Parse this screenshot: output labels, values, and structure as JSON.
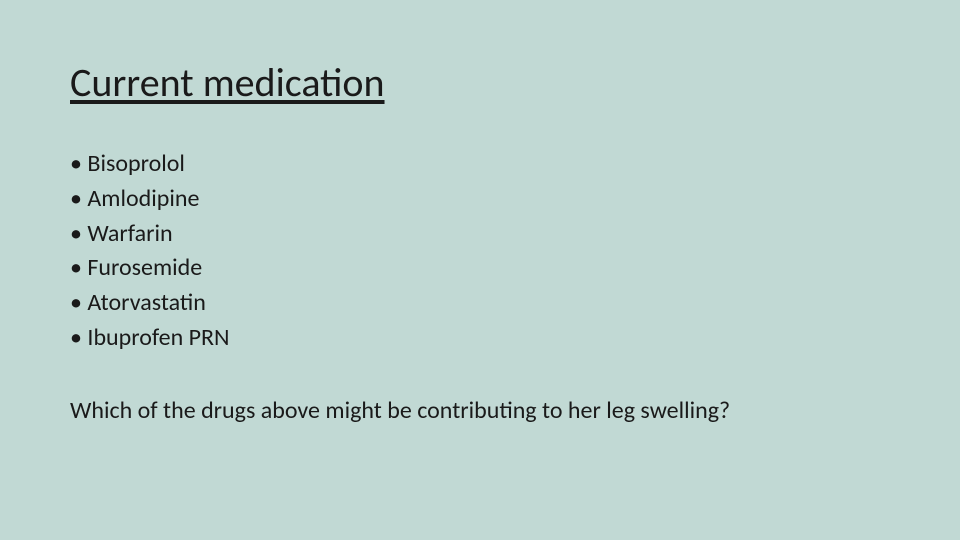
{
  "slide": {
    "background_color": "#c1d9d4",
    "text_color": "#1a1a1a",
    "title": "Current medication",
    "title_fontsize": 40,
    "title_underline": true,
    "bullet_fontsize": 24,
    "bullets": [
      "Bisoprolol",
      "Amlodipine",
      "Warfarin",
      "Furosemide",
      "Atorvastatin",
      "Ibuprofen PRN"
    ],
    "question": "Which of the drugs above might be contributing to her leg swelling?",
    "question_fontsize": 24
  }
}
